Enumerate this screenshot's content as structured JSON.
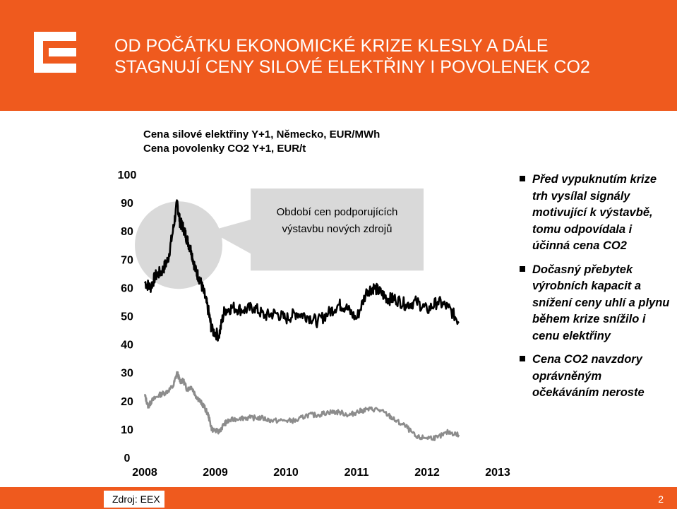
{
  "slide": {
    "title_line1": "OD POČÁTKU EKONOMICKÉ KRIZE KLESLY A DÁLE",
    "title_line2": "STAGNUJÍ CENY SILOVÉ ELEKTŘINY I POVOLENEK CO2",
    "source": "Zdroj: EEX",
    "page_number": "2"
  },
  "colors": {
    "brand": "#ef5a1e",
    "power_series": "#000000",
    "co2_series": "#8c8c8c",
    "callout": "#d9d9d9"
  },
  "chart_data": {
    "type": "line",
    "series_titles": [
      "Cena silové elektřiny Y+1, Německo, EUR/MWh",
      "Cena povolenky CO2 Y+1, EUR/t"
    ],
    "x_ticks": [
      "2008",
      "2009",
      "2010",
      "2011",
      "2012",
      "2013"
    ],
    "y_ticks": [
      "0",
      "10",
      "20",
      "30",
      "40",
      "50",
      "60",
      "70",
      "80",
      "90",
      "100"
    ],
    "xlim": [
      2008,
      2013
    ],
    "ylim": [
      0,
      100
    ],
    "grid": false,
    "annotation": {
      "line1": "Období cen podporujících",
      "line2": "výstavbu nových zdrojů"
    },
    "series": [
      {
        "name": "Cena silové elektřiny Y+1, Německo, EUR/MWh",
        "x": [
          2008.0,
          2008.08,
          2008.15,
          2008.25,
          2008.33,
          2008.4,
          2008.46,
          2008.5,
          2008.55,
          2008.6,
          2008.66,
          2008.72,
          2008.78,
          2008.84,
          2008.9,
          2008.95,
          2009.05,
          2009.13,
          2009.25,
          2009.4,
          2009.55,
          2009.7,
          2009.85,
          2010.0,
          2010.15,
          2010.3,
          2010.45,
          2010.6,
          2010.75,
          2010.85,
          2011.0,
          2011.15,
          2011.25,
          2011.35,
          2011.45,
          2011.55,
          2011.7,
          2011.85,
          2012.0,
          2012.15,
          2012.3,
          2012.45
        ],
        "y": [
          62,
          60,
          64,
          66,
          70,
          80,
          90,
          83,
          81,
          77,
          73,
          66,
          63,
          58,
          52,
          45,
          43,
          52,
          53,
          52,
          53,
          50,
          51,
          49,
          51,
          50,
          48,
          51,
          54,
          53,
          49,
          59,
          60,
          58,
          56,
          56,
          54,
          55,
          52,
          55,
          53,
          48
        ]
      },
      {
        "name": "Cena povolenky CO2 Y+1, EUR/t",
        "x": [
          2008.0,
          2008.05,
          2008.1,
          2008.2,
          2008.3,
          2008.4,
          2008.46,
          2008.5,
          2008.55,
          2008.6,
          2008.66,
          2008.72,
          2008.78,
          2008.84,
          2008.9,
          2008.95,
          2009.05,
          2009.13,
          2009.2,
          2009.35,
          2009.5,
          2009.65,
          2009.8,
          2010.0,
          2010.15,
          2010.3,
          2010.45,
          2010.6,
          2010.75,
          2010.9,
          2011.0,
          2011.15,
          2011.3,
          2011.45,
          2011.55,
          2011.7,
          2011.85,
          2012.0,
          2012.15,
          2012.3,
          2012.45
        ],
        "y": [
          22,
          18,
          20,
          22,
          23,
          25,
          30,
          27,
          27,
          24,
          25,
          22,
          20,
          18,
          15,
          10,
          9,
          12,
          13,
          14,
          14,
          14,
          13,
          13,
          13,
          15,
          15,
          16,
          16,
          15,
          16,
          17,
          17,
          15,
          13,
          11,
          7,
          7,
          7,
          9,
          8
        ]
      }
    ]
  }
}
